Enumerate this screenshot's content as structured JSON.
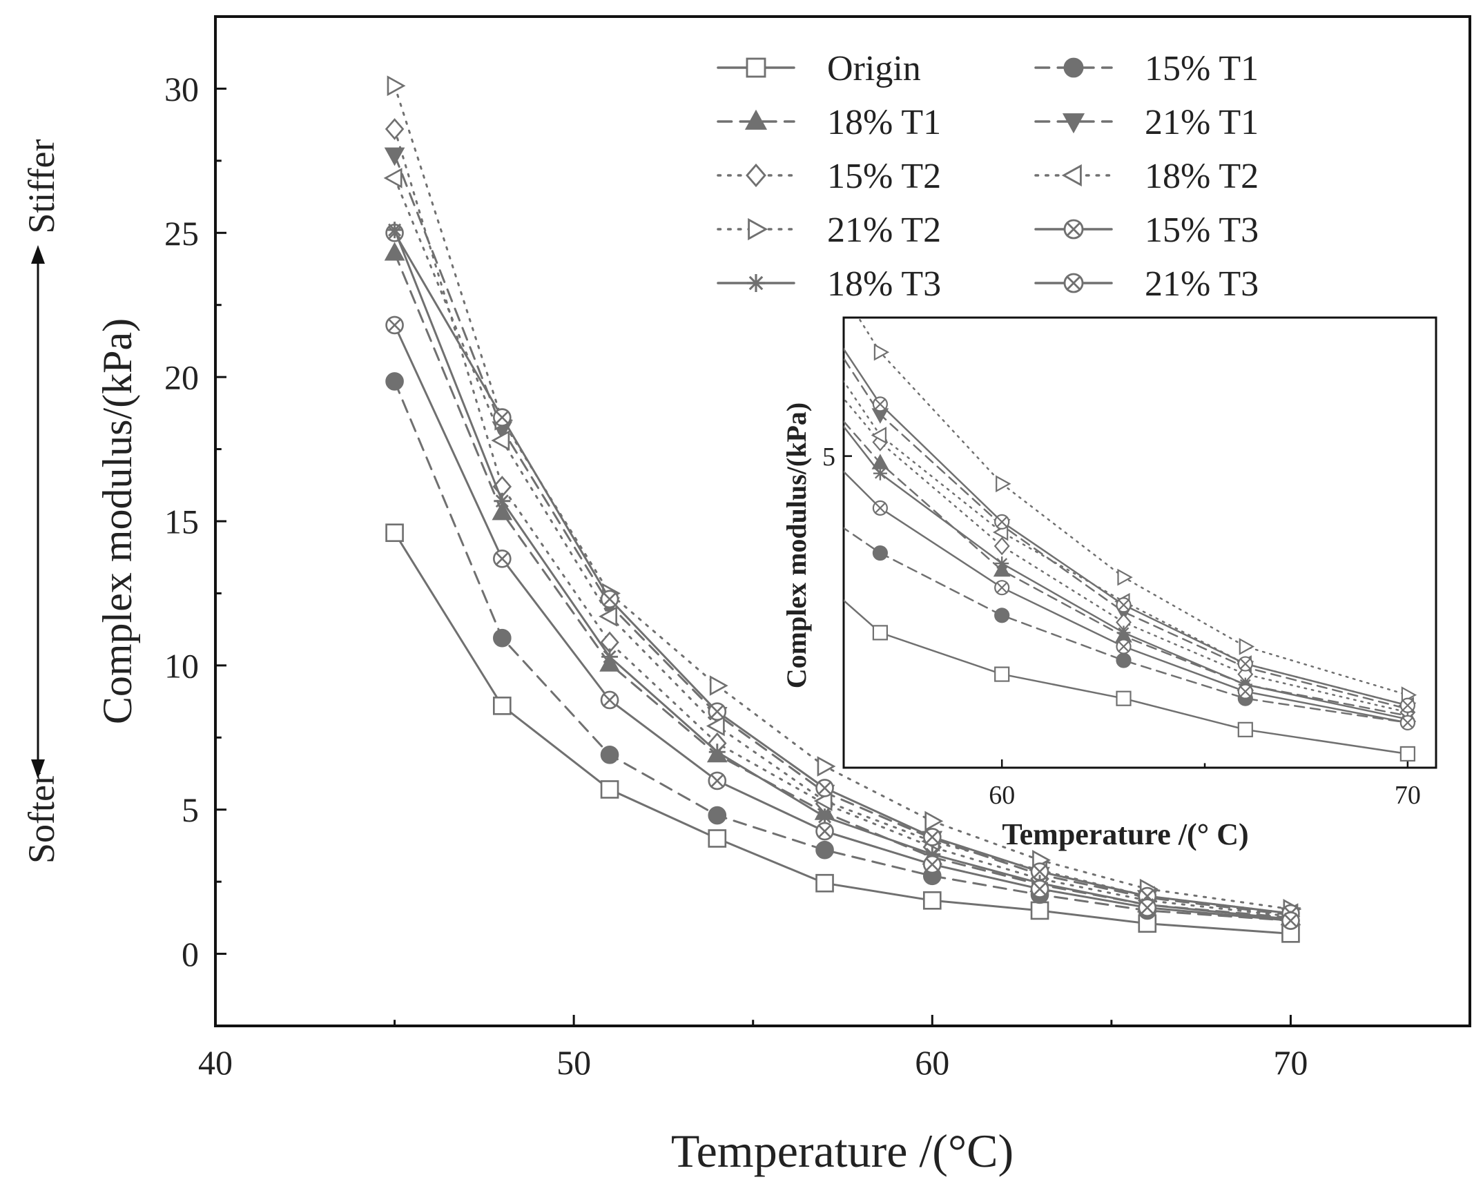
{
  "chart_data": [
    {
      "type": "line",
      "title": "",
      "xlabel": "Temperature /(°C)",
      "ylabel": "Complex modulus/(kPa)",
      "xlim": [
        40,
        75
      ],
      "ylim": [
        -2.5,
        32.5
      ],
      "xticks": [
        40,
        50,
        60,
        70
      ],
      "yticks": [
        0,
        5,
        10,
        15,
        20,
        25,
        30
      ],
      "annotations": {
        "stiffer": "Stiffer",
        "softer": "Softer"
      },
      "legend_position": "top-right",
      "x": [
        45,
        48,
        51,
        54,
        57,
        60,
        63,
        66,
        70
      ],
      "series": [
        {
          "name": "Origin",
          "marker": "square-open",
          "line": "solid",
          "values": [
            14.6,
            8.6,
            5.7,
            4.0,
            2.45,
            1.85,
            1.5,
            1.05,
            0.7
          ]
        },
        {
          "name": "15% T1",
          "marker": "circle-filled",
          "line": "dashed",
          "values": [
            19.85,
            10.95,
            6.9,
            4.8,
            3.6,
            2.7,
            2.05,
            1.5,
            1.15
          ]
        },
        {
          "name": "18% T1",
          "marker": "triangle-up-filled",
          "line": "dashed",
          "values": [
            24.3,
            15.3,
            10.05,
            6.9,
            4.9,
            3.35,
            2.4,
            1.7,
            1.25
          ]
        },
        {
          "name": "21% T1",
          "marker": "triangle-down-filled",
          "line": "dashed",
          "values": [
            27.7,
            18.2,
            12.1,
            8.3,
            5.6,
            4.0,
            2.75,
            1.95,
            1.35
          ]
        },
        {
          "name": "15% T2",
          "marker": "diamond-open",
          "line": "dotted",
          "values": [
            28.6,
            16.2,
            10.8,
            7.3,
            5.2,
            3.7,
            2.6,
            1.85,
            1.3
          ]
        },
        {
          "name": "18% T2",
          "marker": "triangle-left-open",
          "line": "dotted",
          "values": [
            26.9,
            17.8,
            11.7,
            7.9,
            5.3,
            3.9,
            2.9,
            2.0,
            1.4
          ]
        },
        {
          "name": "21% T2",
          "marker": "triangle-right-open",
          "line": "dotted",
          "values": [
            30.1,
            18.5,
            12.5,
            9.3,
            6.5,
            4.6,
            3.25,
            2.25,
            1.55
          ]
        },
        {
          "name": "15% T3",
          "marker": "circle-x-open",
          "line": "solid",
          "values": [
            25.0,
            18.6,
            12.3,
            8.4,
            5.75,
            4.05,
            2.85,
            2.0,
            1.4
          ]
        },
        {
          "name": "18% T3",
          "marker": "asterisk",
          "line": "solid",
          "values": [
            25.1,
            15.7,
            10.3,
            7.0,
            4.75,
            3.45,
            2.45,
            1.7,
            1.2
          ]
        },
        {
          "name": "21% T3",
          "marker": "circle-x-open",
          "line": "solid",
          "values": [
            21.8,
            13.7,
            8.8,
            6.0,
            4.25,
            3.1,
            2.25,
            1.6,
            1.15
          ]
        }
      ]
    },
    {
      "type": "line",
      "title": "",
      "role": "inset (zoom of 57–70 °C)",
      "xlabel": "Temperature /(° C)",
      "ylabel": "Complex modulus/(kPa)",
      "xlim": [
        56.1,
        70.7
      ],
      "ylim": [
        0.5,
        7.0
      ],
      "xticks": [
        60,
        70
      ],
      "xtick_labels": [
        "60",
        "70"
      ],
      "minor_xticks": [
        65
      ],
      "yticks": [
        5
      ],
      "ytick_labels": [
        "5"
      ],
      "note": "same series as main chart, points at x = 57, 60, 63, 66, 70"
    }
  ]
}
